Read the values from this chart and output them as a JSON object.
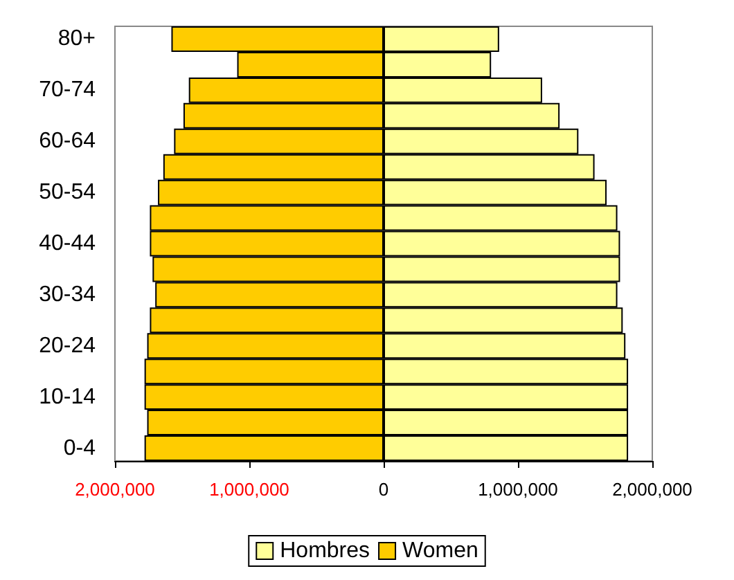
{
  "chart_data": {
    "type": "bar",
    "orientation": "horizontal",
    "stacked": true,
    "categories": [
      "80+",
      null,
      "70-74",
      null,
      "60-64",
      null,
      "50-54",
      null,
      "40-44",
      null,
      "30-34",
      null,
      "20-24",
      null,
      "10-14",
      null,
      "0-4"
    ],
    "series": [
      {
        "name": "Hombres",
        "color": "#ffff99",
        "values": [
          860000,
          800000,
          1180000,
          1310000,
          1450000,
          1570000,
          1660000,
          1740000,
          1760000,
          1760000,
          1740000,
          1780000,
          1800000,
          1820000,
          1820000,
          1820000,
          1820000
        ]
      },
      {
        "name": "Women",
        "color": "#ffcc00",
        "values": [
          -1580000,
          -1090000,
          -1450000,
          -1490000,
          -1560000,
          -1640000,
          -1680000,
          -1740000,
          -1740000,
          -1720000,
          -1700000,
          -1740000,
          -1760000,
          -1780000,
          -1780000,
          -1760000,
          -1780000
        ]
      }
    ],
    "xlim": [
      -2000000,
      2000000
    ],
    "xticks": [
      {
        "value": -2000000,
        "label": "2,000,000"
      },
      {
        "value": -1000000,
        "label": "1,000,000"
      },
      0,
      {
        "value": 1000000,
        "label": "1,000,000"
      },
      {
        "value": 2000000,
        "label": "2,000,000"
      }
    ],
    "grid": false,
    "legend": "bottom"
  }
}
